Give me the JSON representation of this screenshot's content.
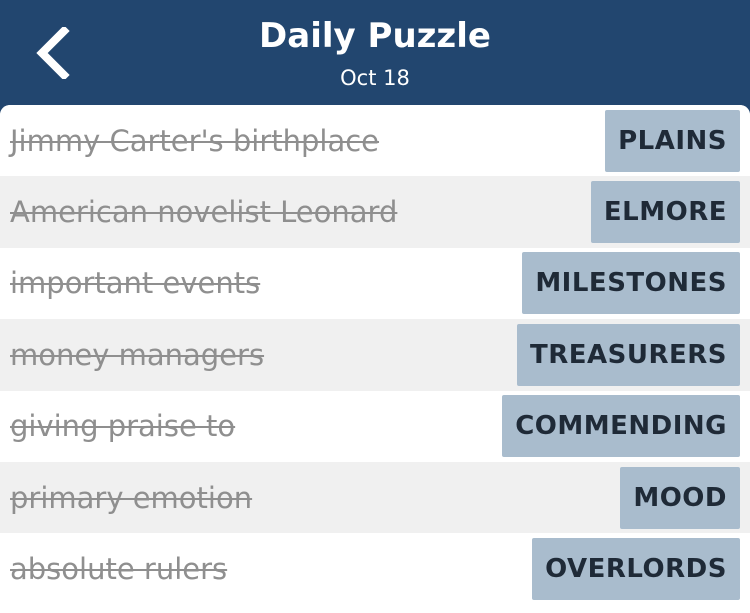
{
  "header": {
    "title": "Daily Puzzle",
    "date": "Oct 18",
    "back_icon": "chevron-left-icon"
  },
  "rows": [
    {
      "clue": "Jimmy Carter's birthplace",
      "answer": "PLAINS"
    },
    {
      "clue": "American novelist Leonard",
      "answer": "ELMORE"
    },
    {
      "clue": "important events",
      "answer": "MILESTONES"
    },
    {
      "clue": "money managers",
      "answer": "TREASURERS"
    },
    {
      "clue": "giving praise to",
      "answer": "COMMENDING"
    },
    {
      "clue": "primary emotion",
      "answer": "MOOD"
    },
    {
      "clue": "absolute rulers",
      "answer": "OVERLORDS"
    }
  ],
  "colors": {
    "header_bg": "#22466f",
    "answer_bg": "#a9bccd",
    "alt_row_bg": "#f0f0f0",
    "clue_text": "#8f8f8f"
  }
}
